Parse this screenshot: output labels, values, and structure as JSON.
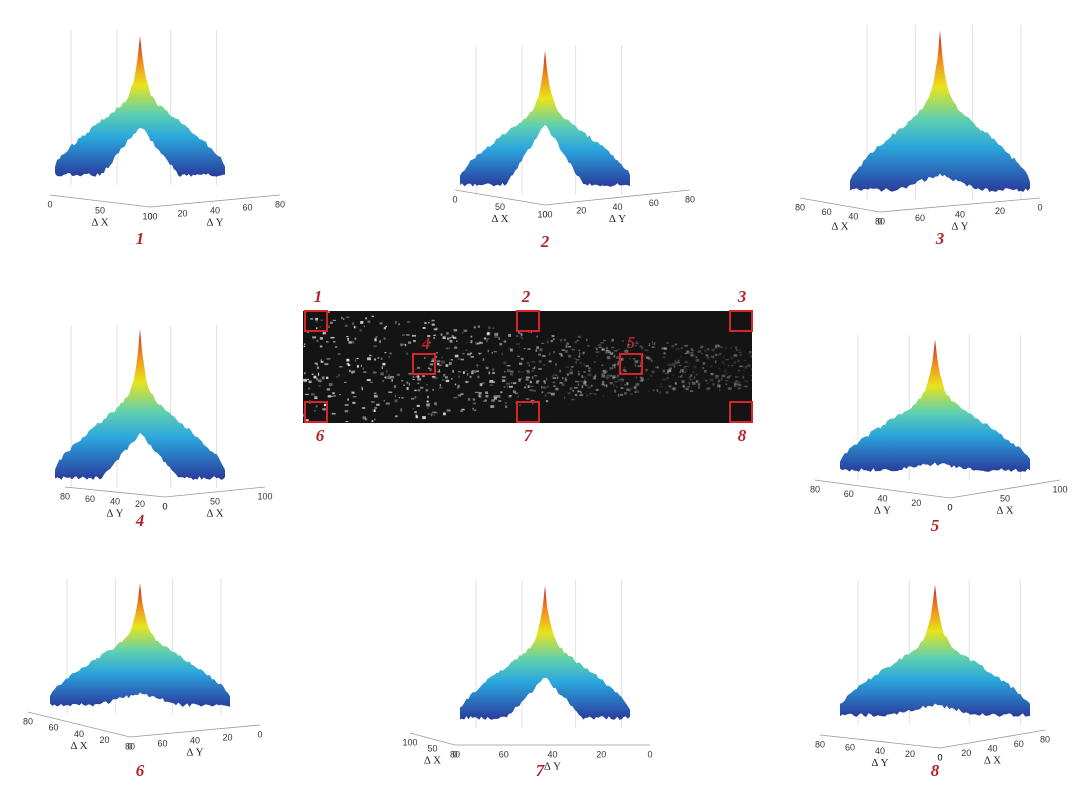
{
  "panels": [
    {
      "label": "1",
      "axes": [
        {
          "label": "Δ X",
          "ticks": [
            "0",
            "50",
            "100"
          ]
        },
        {
          "label": "Δ Y",
          "ticks": [
            "0",
            "20",
            "40",
            "60",
            "80"
          ]
        }
      ]
    },
    {
      "label": "2",
      "axes": [
        {
          "label": "Δ X",
          "ticks": [
            "0",
            "50",
            "100"
          ]
        },
        {
          "label": "Δ Y",
          "ticks": [
            "0",
            "20",
            "40",
            "60",
            "80"
          ]
        }
      ]
    },
    {
      "label": "3",
      "axes": [
        {
          "label": "Δ X",
          "ticks": [
            "80",
            "60",
            "40",
            "0"
          ]
        },
        {
          "label": "Δ Y",
          "ticks": [
            "80",
            "60",
            "40",
            "20",
            "0"
          ]
        }
      ]
    },
    {
      "label": "4",
      "axes": [
        {
          "label": "Δ Y",
          "ticks": [
            "80",
            "60",
            "40",
            "20",
            "0"
          ]
        },
        {
          "label": "Δ X",
          "ticks": [
            "0",
            "50",
            "100"
          ]
        }
      ]
    },
    {
      "label": "5",
      "axes": [
        {
          "label": "Δ Y",
          "ticks": [
            "80",
            "60",
            "40",
            "20",
            "0"
          ]
        },
        {
          "label": "Δ X",
          "ticks": [
            "0",
            "50",
            "100"
          ]
        }
      ]
    },
    {
      "label": "6",
      "axes": [
        {
          "label": "Δ X",
          "ticks": [
            "80",
            "60",
            "40",
            "20",
            "0"
          ]
        },
        {
          "label": "Δ Y",
          "ticks": [
            "80",
            "60",
            "40",
            "20",
            "0"
          ]
        }
      ]
    },
    {
      "label": "7",
      "axes": [
        {
          "label": "Δ X",
          "ticks": [
            "100",
            "50",
            "0"
          ]
        },
        {
          "label": "Δ Y",
          "ticks": [
            "80",
            "60",
            "40",
            "20",
            "0"
          ]
        }
      ]
    },
    {
      "label": "8",
      "axes": [
        {
          "label": "Δ Y",
          "ticks": [
            "80",
            "60",
            "40",
            "20",
            "0"
          ]
        },
        {
          "label": "Δ X",
          "ticks": [
            "0",
            "20",
            "40",
            "60",
            "80"
          ]
        }
      ]
    }
  ],
  "image": {
    "box_labels": [
      "1",
      "2",
      "3",
      "4",
      "5",
      "6",
      "7",
      "8"
    ]
  }
}
